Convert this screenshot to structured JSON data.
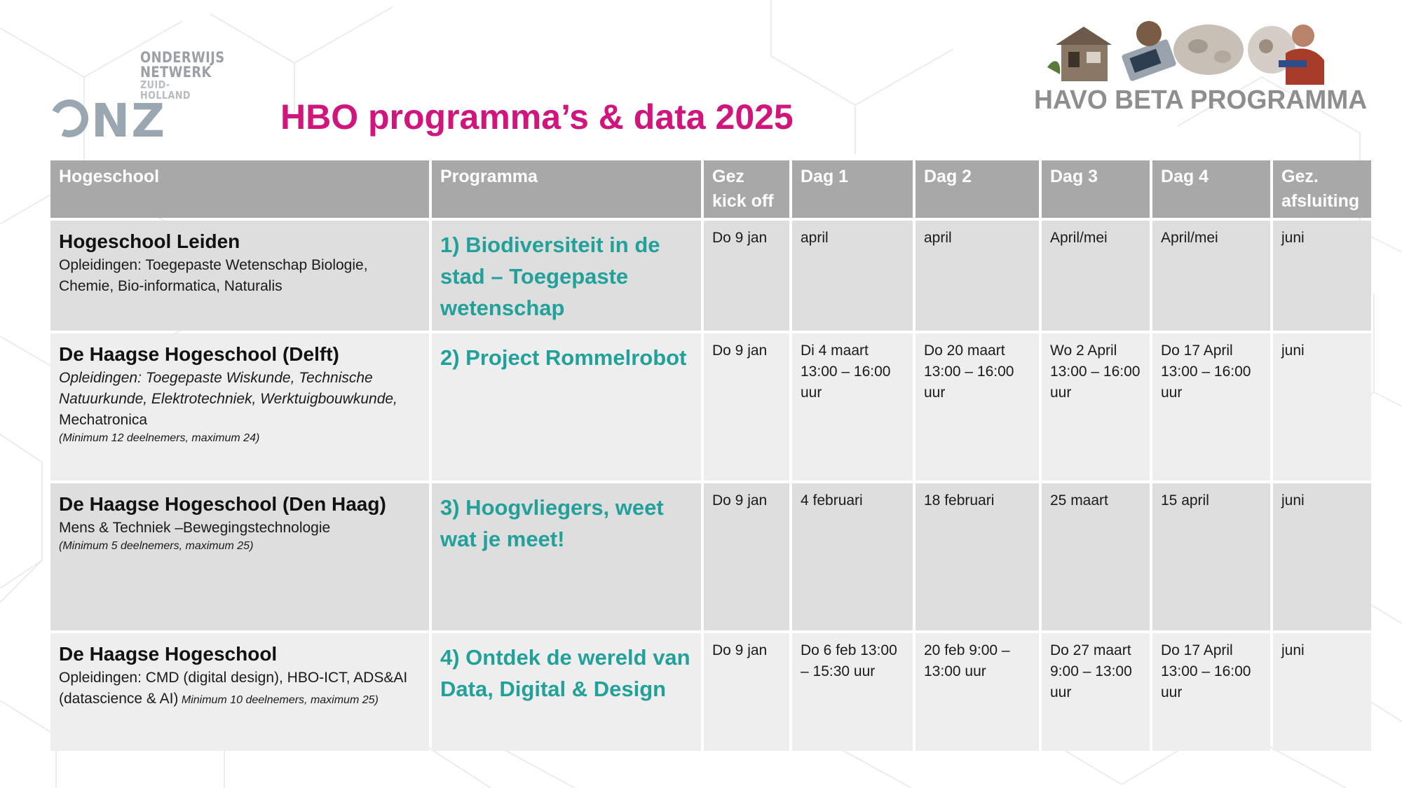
{
  "logos": {
    "onz": {
      "line1": "ONDERWIJS",
      "line2": "NETWERK",
      "line3": "ZUID-HOLLAND",
      "mark": "ONZ"
    },
    "havo": {
      "label": "HAVO BETA PROGRAMMA"
    }
  },
  "title": "HBO programma’s & data 2025",
  "table": {
    "headers": [
      "Hogeschool",
      "Programma",
      "Gez\nkick off",
      "Dag 1",
      "Dag 2",
      "Dag 3",
      "Dag 4",
      "Gez.\nafsluiting"
    ],
    "rows": [
      {
        "school": "Hogeschool Leiden",
        "desc": "Opleidingen: Toegepaste Wetenschap Biologie, Chemie, Bio-informatica, Naturalis",
        "program": "1) Biodiversiteit in de stad – Toegepaste wetenschap",
        "kickoff": "Do 9 jan",
        "dag1": "april",
        "dag2": "april",
        "dag3": "April/mei",
        "dag4": "April/mei",
        "afsluiting": "juni"
      },
      {
        "school": "De Haagse Hogeschool (Delft)",
        "desc_italic": "Opleidingen: Toegepaste Wiskunde, Technische Natuurkunde, Elektrotechniek, Werktuigbouwkunde,",
        "desc_tail": " Mechatronica",
        "note": "(Minimum 12 deelnemers, maximum 24)",
        "program": "2) Project Rommelrobot",
        "kickoff": "Do 9 jan",
        "dag1": "Di 4 maart 13:00 – 16:00 uur",
        "dag2": "Do 20 maart 13:00 – 16:00 uur",
        "dag3": "Wo 2 April 13:00 – 16:00 uur",
        "dag4": "Do 17 April 13:00 – 16:00 uur",
        "afsluiting": "juni"
      },
      {
        "school": "De Haagse Hogeschool (Den Haag)",
        "desc": "Mens & Techniek –Bewegingstechnologie",
        "note": "(Minimum 5 deelnemers, maximum 25)",
        "program": "3) Hoogvliegers, weet wat je meet!",
        "kickoff": "Do 9 jan",
        "dag1": "4 februari",
        "dag2": "18 februari",
        "dag3": "25 maart",
        "dag4": "15 april",
        "afsluiting": "juni"
      },
      {
        "school": "De Haagse Hogeschool",
        "desc": "Opleidingen: CMD (digital design), HBO-ICT, ADS&AI (datascience & AI)",
        "note_inline": " Minimum 10 deelnemers, maximum 25)",
        "program": "4) Ontdek de wereld van Data, Digital & Design",
        "kickoff": "Do 9 jan",
        "dag1": "Do 6 feb 13:00 – 15:30 uur",
        "dag2": "20 feb 9:00 – 13:00 uur",
        "dag3": "Do 27 maart 9:00 – 13:00 uur",
        "dag4": "Do 17 April 13:00 – 16:00 uur",
        "afsluiting": "juni"
      }
    ]
  },
  "colors": {
    "title": "#d0167d",
    "program": "#22a19a",
    "header_bg": "#a8a8a8",
    "row_odd": "#dedede",
    "row_even": "#eeeeee"
  }
}
